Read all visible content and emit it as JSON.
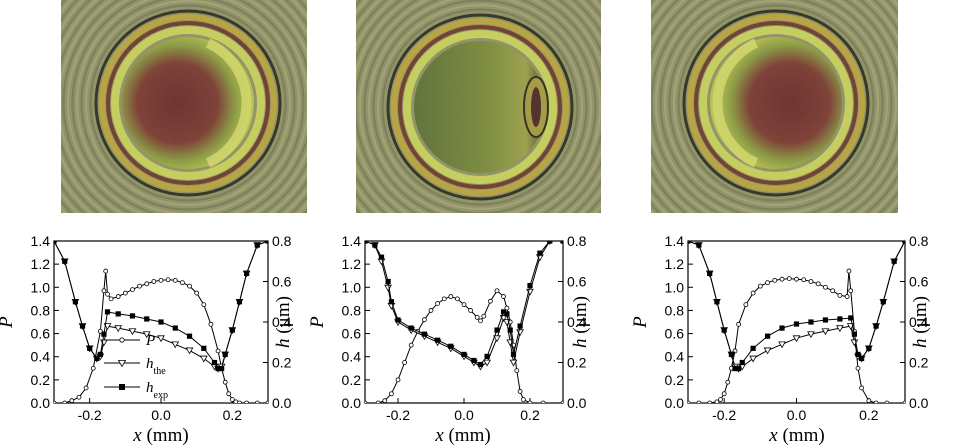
{
  "chart_data": [
    {
      "type": "line",
      "xlabel": "x (mm)",
      "ylabel_left": "P",
      "ylabel_right": "h (μm)",
      "xlim": [
        -0.3,
        0.3
      ],
      "ylim_left": [
        0,
        1.4
      ],
      "ylim_right": [
        0,
        0.8
      ],
      "xticks": [
        -0.2,
        0.0,
        0.2
      ],
      "yticks_left": [
        0.0,
        0.2,
        0.4,
        0.6,
        0.8,
        1.0,
        1.2,
        1.4
      ],
      "yticks_right": [
        0.0,
        0.2,
        0.4,
        0.6,
        0.8
      ],
      "xtick_labels": [
        "-0.2",
        "0.0",
        "0.2"
      ],
      "ytick_labels_left": [
        "0.0",
        "0.2",
        "0.4",
        "0.6",
        "0.8",
        "1.0",
        "1.2",
        "1.4"
      ],
      "ytick_labels_right": [
        "0.0",
        "0.2",
        "0.4",
        "0.6",
        "0.8"
      ],
      "legend": [
        {
          "label": "P",
          "marker": "open-circle"
        },
        {
          "label": "h",
          "sub": "the",
          "marker": "open-triangle"
        },
        {
          "label": "h",
          "sub": "exp",
          "marker": "filled-square"
        }
      ],
      "series": [
        {
          "name": "P",
          "axis": "left",
          "marker": "open-circle",
          "x": [
            -0.3,
            -0.27,
            -0.25,
            -0.23,
            -0.21,
            -0.19,
            -0.17,
            -0.16,
            -0.155,
            -0.15,
            -0.14,
            -0.12,
            -0.1,
            -0.08,
            -0.06,
            -0.04,
            -0.02,
            0.0,
            0.02,
            0.04,
            0.06,
            0.08,
            0.1,
            0.12,
            0.14,
            0.16,
            0.17,
            0.18,
            0.19,
            0.2,
            0.21,
            0.22,
            0.24,
            0.27,
            0.3
          ],
          "y": [
            0.0,
            0.0,
            0.02,
            0.05,
            0.13,
            0.3,
            0.62,
            0.97,
            1.14,
            0.94,
            0.9,
            0.92,
            0.95,
            0.98,
            1.01,
            1.03,
            1.05,
            1.06,
            1.065,
            1.06,
            1.04,
            1.01,
            0.95,
            0.85,
            0.68,
            0.45,
            0.3,
            0.18,
            0.08,
            0.03,
            0.01,
            0.0,
            0.0,
            0.0,
            0.0
          ]
        },
        {
          "name": "h_the",
          "axis": "right",
          "marker": "open-triangle",
          "x": [
            -0.3,
            -0.27,
            -0.24,
            -0.22,
            -0.2,
            -0.18,
            -0.17,
            -0.16,
            -0.15,
            -0.12,
            -0.08,
            -0.04,
            0.0,
            0.04,
            0.08,
            0.12,
            0.15,
            0.16,
            0.17,
            0.18,
            0.2,
            0.22,
            0.24,
            0.27,
            0.3
          ],
          "y": [
            0.8,
            0.7,
            0.5,
            0.38,
            0.27,
            0.22,
            0.23,
            0.3,
            0.38,
            0.37,
            0.355,
            0.34,
            0.32,
            0.29,
            0.26,
            0.22,
            0.18,
            0.17,
            0.18,
            0.24,
            0.36,
            0.5,
            0.64,
            0.78,
            0.8
          ]
        },
        {
          "name": "h_exp",
          "axis": "right",
          "marker": "filled-square",
          "x": [
            -0.3,
            -0.27,
            -0.24,
            -0.22,
            -0.2,
            -0.18,
            -0.17,
            -0.16,
            -0.15,
            -0.12,
            -0.08,
            -0.04,
            0.0,
            0.04,
            0.08,
            0.12,
            0.15,
            0.16,
            0.17,
            0.18,
            0.2,
            0.22,
            0.24,
            0.27,
            0.3
          ],
          "y": [
            0.8,
            0.7,
            0.5,
            0.38,
            0.27,
            0.22,
            0.24,
            0.34,
            0.45,
            0.44,
            0.43,
            0.415,
            0.4,
            0.37,
            0.33,
            0.27,
            0.2,
            0.17,
            0.17,
            0.24,
            0.36,
            0.5,
            0.64,
            0.78,
            0.8
          ]
        }
      ]
    },
    {
      "type": "line",
      "xlabel": "x (mm)",
      "ylabel_left": "P",
      "ylabel_right": "h (μm)",
      "xlim": [
        -0.3,
        0.3
      ],
      "ylim_left": [
        0,
        1.4
      ],
      "ylim_right": [
        0,
        0.8
      ],
      "xticks": [
        -0.2,
        0.0,
        0.2
      ],
      "yticks_left": [
        0.0,
        0.2,
        0.4,
        0.6,
        0.8,
        1.0,
        1.2,
        1.4
      ],
      "yticks_right": [
        0.0,
        0.2,
        0.4,
        0.6,
        0.8
      ],
      "xtick_labels": [
        "-0.2",
        "0.0",
        "0.2"
      ],
      "ytick_labels_left": [
        "0.0",
        "0.2",
        "0.4",
        "0.6",
        "0.8",
        "1.0",
        "1.2",
        "1.4"
      ],
      "ytick_labels_right": [
        "0.0",
        "0.2",
        "0.4",
        "0.6",
        "0.8"
      ],
      "series": [
        {
          "name": "P",
          "axis": "left",
          "marker": "open-circle",
          "x": [
            -0.3,
            -0.26,
            -0.24,
            -0.22,
            -0.2,
            -0.18,
            -0.16,
            -0.14,
            -0.12,
            -0.1,
            -0.08,
            -0.06,
            -0.04,
            -0.02,
            0.0,
            0.02,
            0.04,
            0.05,
            0.06,
            0.08,
            0.1,
            0.12,
            0.13,
            0.14,
            0.15,
            0.16,
            0.17,
            0.18,
            0.2,
            0.24,
            0.3
          ],
          "y": [
            0.0,
            0.0,
            0.02,
            0.08,
            0.2,
            0.35,
            0.5,
            0.62,
            0.72,
            0.8,
            0.86,
            0.9,
            0.92,
            0.9,
            0.85,
            0.8,
            0.74,
            0.71,
            0.75,
            0.88,
            0.97,
            0.92,
            0.82,
            0.7,
            0.5,
            0.28,
            0.1,
            0.03,
            0.0,
            0.0,
            0.0
          ]
        },
        {
          "name": "h_the",
          "axis": "right",
          "marker": "open-triangle",
          "x": [
            -0.3,
            -0.27,
            -0.25,
            -0.23,
            -0.22,
            -0.2,
            -0.16,
            -0.12,
            -0.08,
            -0.04,
            0.0,
            0.03,
            0.05,
            0.07,
            0.1,
            0.12,
            0.13,
            0.14,
            0.15,
            0.17,
            0.2,
            0.23,
            0.26,
            0.3
          ],
          "y": [
            0.8,
            0.78,
            0.7,
            0.57,
            0.48,
            0.4,
            0.36,
            0.33,
            0.3,
            0.27,
            0.23,
            0.2,
            0.18,
            0.2,
            0.32,
            0.42,
            0.4,
            0.3,
            0.2,
            0.35,
            0.55,
            0.72,
            0.8,
            0.8
          ]
        },
        {
          "name": "h_exp",
          "axis": "right",
          "marker": "filled-square",
          "x": [
            -0.3,
            -0.27,
            -0.25,
            -0.23,
            -0.22,
            -0.2,
            -0.16,
            -0.12,
            -0.08,
            -0.04,
            0.0,
            0.03,
            0.05,
            0.07,
            0.1,
            0.12,
            0.13,
            0.14,
            0.15,
            0.17,
            0.2,
            0.23,
            0.26,
            0.3
          ],
          "y": [
            0.8,
            0.78,
            0.72,
            0.6,
            0.5,
            0.41,
            0.37,
            0.34,
            0.31,
            0.28,
            0.24,
            0.21,
            0.19,
            0.23,
            0.36,
            0.45,
            0.44,
            0.36,
            0.24,
            0.38,
            0.58,
            0.74,
            0.8,
            0.8
          ]
        }
      ]
    },
    {
      "type": "line",
      "xlabel": "x (mm)",
      "ylabel_left": "P",
      "ylabel_right": "h (μm)",
      "xlim": [
        -0.3,
        0.3
      ],
      "ylim_left": [
        0,
        1.4
      ],
      "ylim_right": [
        0,
        0.8
      ],
      "xticks": [
        -0.2,
        0.0,
        0.2
      ],
      "yticks_left": [
        0.0,
        0.2,
        0.4,
        0.6,
        0.8,
        1.0,
        1.2,
        1.4
      ],
      "yticks_right": [
        0.0,
        0.2,
        0.4,
        0.6,
        0.8
      ],
      "xtick_labels": [
        "-0.2",
        "0.0",
        "0.2"
      ],
      "ytick_labels_left": [
        "0.0",
        "0.2",
        "0.4",
        "0.6",
        "0.8",
        "1.0",
        "1.2",
        "1.4"
      ],
      "ytick_labels_right": [
        "0.0",
        "0.2",
        "0.4",
        "0.6",
        "0.8"
      ],
      "series": [
        {
          "name": "P",
          "axis": "left",
          "marker": "open-circle",
          "x": [
            -0.3,
            -0.27,
            -0.24,
            -0.22,
            -0.21,
            -0.2,
            -0.19,
            -0.18,
            -0.17,
            -0.16,
            -0.14,
            -0.12,
            -0.1,
            -0.08,
            -0.06,
            -0.04,
            -0.02,
            0.0,
            0.02,
            0.04,
            0.06,
            0.08,
            0.1,
            0.12,
            0.14,
            0.145,
            0.15,
            0.16,
            0.17,
            0.18,
            0.2,
            0.22,
            0.25,
            0.3
          ],
          "y": [
            0.0,
            0.0,
            0.0,
            0.01,
            0.03,
            0.08,
            0.18,
            0.3,
            0.45,
            0.68,
            0.85,
            0.95,
            1.01,
            1.04,
            1.06,
            1.07,
            1.075,
            1.07,
            1.065,
            1.05,
            1.03,
            1.0,
            0.97,
            0.93,
            0.92,
            1.14,
            0.97,
            0.62,
            0.3,
            0.13,
            0.02,
            0.0,
            0.0,
            0.0
          ]
        },
        {
          "name": "h_the",
          "axis": "right",
          "marker": "open-triangle",
          "x": [
            -0.3,
            -0.27,
            -0.24,
            -0.22,
            -0.2,
            -0.18,
            -0.17,
            -0.16,
            -0.15,
            -0.12,
            -0.08,
            -0.04,
            0.0,
            0.04,
            0.08,
            0.12,
            0.15,
            0.16,
            0.17,
            0.18,
            0.2,
            0.22,
            0.24,
            0.27,
            0.3
          ],
          "y": [
            0.8,
            0.78,
            0.64,
            0.5,
            0.36,
            0.24,
            0.18,
            0.17,
            0.18,
            0.22,
            0.26,
            0.29,
            0.32,
            0.34,
            0.355,
            0.37,
            0.38,
            0.3,
            0.23,
            0.22,
            0.27,
            0.38,
            0.5,
            0.7,
            0.8
          ]
        },
        {
          "name": "h_exp",
          "axis": "right",
          "marker": "filled-square",
          "x": [
            -0.3,
            -0.27,
            -0.24,
            -0.22,
            -0.2,
            -0.18,
            -0.17,
            -0.16,
            -0.15,
            -0.12,
            -0.08,
            -0.04,
            0.0,
            0.04,
            0.08,
            0.12,
            0.15,
            0.16,
            0.17,
            0.18,
            0.2,
            0.22,
            0.24,
            0.27,
            0.3
          ],
          "y": [
            0.8,
            0.78,
            0.64,
            0.5,
            0.36,
            0.24,
            0.17,
            0.17,
            0.2,
            0.27,
            0.33,
            0.37,
            0.39,
            0.4,
            0.41,
            0.415,
            0.42,
            0.34,
            0.24,
            0.22,
            0.27,
            0.38,
            0.5,
            0.7,
            0.8
          ]
        }
      ]
    }
  ]
}
